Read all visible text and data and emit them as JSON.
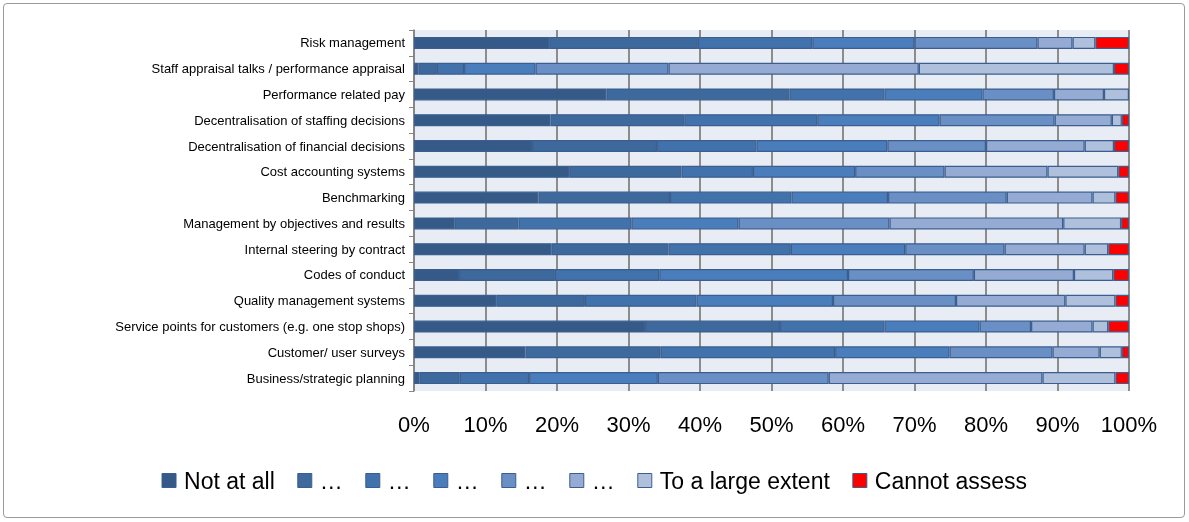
{
  "chart_data": {
    "type": "bar",
    "orientation": "horizontal",
    "stacked": true,
    "categories": [
      "Risk management",
      "Staff appraisal talks / performance appraisal",
      "Performance related pay",
      "Decentralisation of staffing decisions",
      "Decentralisation of financial decisions",
      "Cost accounting systems",
      "Benchmarking",
      "Management by objectives and results",
      "Internal steering by contract",
      "Codes of conduct",
      "Quality management systems",
      "Service points for customers (e.g. one stop shops)",
      "Customer/ user surveys",
      "Business/strategic planning"
    ],
    "series": [
      {
        "name": "Not at all",
        "color": "#355a88",
        "values": [
          18.9,
          0.6,
          26.9,
          19.1,
          16.5,
          21.7,
          17.4,
          5.7,
          19.2,
          6.3,
          11.5,
          32.3,
          15.6,
          0.8
        ]
      },
      {
        "name": "…",
        "color": "#3d699d",
        "values": [
          20.8,
          2.6,
          25.6,
          18.7,
          17.5,
          15.7,
          18.4,
          8.9,
          16.4,
          13.4,
          12.4,
          18.9,
          18.9,
          5.6
        ]
      },
      {
        "name": "…",
        "color": "#4172ab",
        "values": [
          16.0,
          3.8,
          13.3,
          18.6,
          13.9,
          10.0,
          17.0,
          15.8,
          17.1,
          14.6,
          15.6,
          14.6,
          24.4,
          9.7
        ]
      },
      {
        "name": "…",
        "color": "#4a7dbb",
        "values": [
          14.3,
          10.0,
          13.7,
          17.1,
          18.3,
          14.3,
          13.5,
          15.0,
          16.0,
          26.4,
          19.1,
          13.3,
          16.0,
          18.0
        ]
      },
      {
        "name": "…",
        "color": "#6a8fc5",
        "values": [
          17.2,
          18.6,
          10.0,
          16.1,
          13.8,
          12.5,
          16.6,
          21.1,
          13.9,
          17.6,
          17.2,
          7.2,
          14.4,
          23.9
        ]
      },
      {
        "name": "…",
        "color": "#95abd3",
        "values": [
          4.9,
          35.0,
          7.0,
          8.0,
          13.8,
          14.4,
          12.0,
          24.3,
          11.2,
          14.0,
          15.3,
          8.6,
          6.6,
          29.9
        ]
      },
      {
        "name": "To a large extent",
        "color": "#afc0dd",
        "values": [
          3.2,
          27.3,
          3.5,
          1.4,
          4.1,
          9.9,
          3.2,
          8.1,
          3.3,
          5.5,
          7.0,
          2.2,
          3.1,
          10.2
        ]
      },
      {
        "name": "Cannot assess",
        "color": "#ff0000",
        "values": [
          4.7,
          2.1,
          null,
          1.0,
          2.1,
          1.5,
          1.9,
          1.1,
          2.9,
          2.2,
          1.9,
          2.9,
          1.0,
          1.9
        ]
      }
    ],
    "xlim": [
      0,
      100
    ],
    "xticks": [
      {
        "value": 0,
        "label": "0%"
      },
      {
        "value": 10,
        "label": "10%"
      },
      {
        "value": 20,
        "label": "20%"
      },
      {
        "value": 30,
        "label": "30%"
      },
      {
        "value": 40,
        "label": "40%"
      },
      {
        "value": 50,
        "label": "50%"
      },
      {
        "value": 60,
        "label": "60%"
      },
      {
        "value": 70,
        "label": "70%"
      },
      {
        "value": 80,
        "label": "80%"
      },
      {
        "value": 90,
        "label": "90%"
      },
      {
        "value": 100,
        "label": "100%"
      }
    ],
    "grid": "x",
    "legend": "bottom"
  }
}
